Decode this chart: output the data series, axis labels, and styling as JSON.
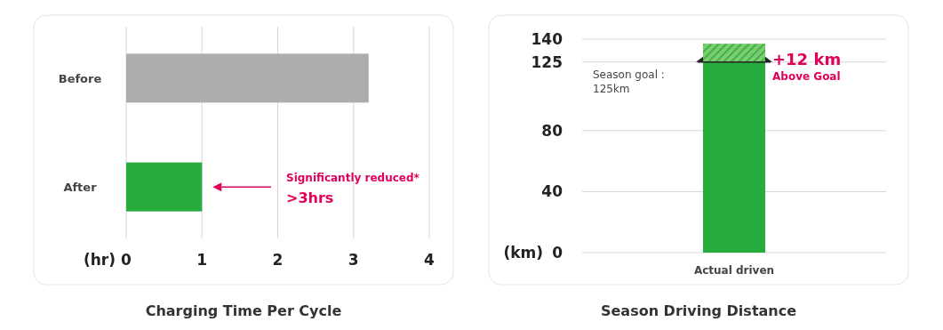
{
  "chart_data": [
    {
      "type": "bar",
      "orientation": "horizontal",
      "title": "Charging Time Per Cycle",
      "xlabel": "(hr)",
      "categories": [
        "Before",
        "After"
      ],
      "values": [
        3.2,
        1
      ],
      "colors": [
        "#adadad",
        "#26ac3c"
      ],
      "xlim": [
        0,
        4
      ],
      "xticks": [
        0,
        1,
        2,
        3,
        4
      ],
      "grid": "x",
      "annotations": [
        "Significantly reduced*",
        ">3hrs"
      ]
    },
    {
      "type": "bar",
      "stacked": true,
      "title": "Season Driving Distance",
      "ylabel": "(km)",
      "categories": [
        "Actual driven"
      ],
      "series": [
        {
          "color": "#26ac3c",
          "values": [
            125
          ]
        },
        {
          "color": "#7fcc70",
          "values": [
            12
          ]
        }
      ],
      "ylim": [
        0,
        140
      ],
      "yticks": [
        0,
        40,
        80,
        125,
        140
      ],
      "grid": "y",
      "ref_lines": [
        {
          "axis": "y",
          "value": 125,
          "label": "Season goal : 125km",
          "color": "#222222"
        }
      ],
      "annotations": [
        "+12 km",
        "Above Goal"
      ]
    }
  ]
}
